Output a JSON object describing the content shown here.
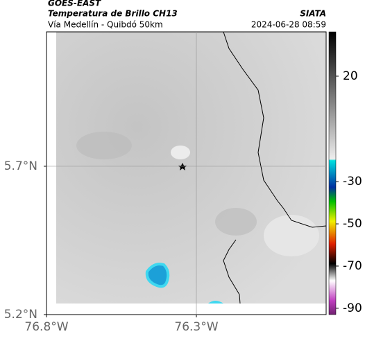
{
  "header": {
    "source": "GOES-EAST",
    "title": "Temperatura de Brillo CH13",
    "subtitle": "Vía Medellín - Quibdó 50km",
    "credit": "SIATA",
    "timestamp": "2024-06-28 08:59"
  },
  "map": {
    "lonlim": [
      -76.8,
      -75.867
    ],
    "latlim": [
      5.2,
      6.153
    ],
    "lonticks": [
      {
        "value": -76.8,
        "label": "76.8°W"
      },
      {
        "value": -76.3,
        "label": "76.3°W"
      }
    ],
    "latticks": [
      {
        "value": 5.7,
        "label": "5.7°N"
      },
      {
        "value": 5.2,
        "label": "5.2°N"
      }
    ]
  },
  "colorbar": {
    "lim": [
      41,
      -93
    ],
    "ticks": [
      20,
      -30,
      -50,
      -70,
      -90
    ]
  }
}
